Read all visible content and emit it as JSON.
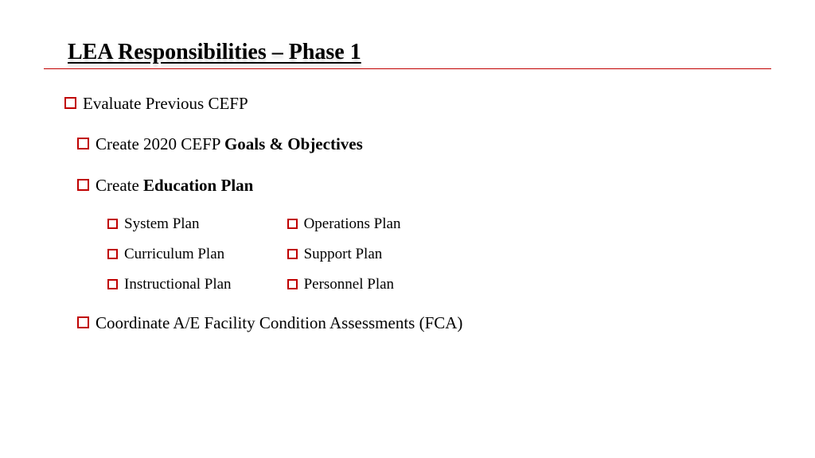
{
  "title": "LEA Responsibilities – Phase 1",
  "colors": {
    "bullet": "#c00000",
    "line": "#c00000",
    "text": "#000000",
    "background": "#ffffff"
  },
  "typography": {
    "title_fontsize": 28,
    "item_fontsize": 21,
    "subitem_fontsize": 19,
    "font_family": "Georgia, serif"
  },
  "items": [
    {
      "prefix": "",
      "text": "Evaluate Previous CEFP",
      "bold": ""
    },
    {
      "prefix": "Create 2020 CEFP ",
      "text": "",
      "bold": "Goals & Objectives"
    },
    {
      "prefix": "Create ",
      "text": "",
      "bold": "Education Plan"
    },
    {
      "prefix": "",
      "text": "Coordinate A/E Facility Condition Assessments (FCA)",
      "bold": ""
    }
  ],
  "sub_left": [
    "System Plan",
    "Curriculum Plan",
    "Instructional Plan"
  ],
  "sub_right": [
    "Operations Plan",
    "Support Plan",
    "Personnel Plan"
  ]
}
